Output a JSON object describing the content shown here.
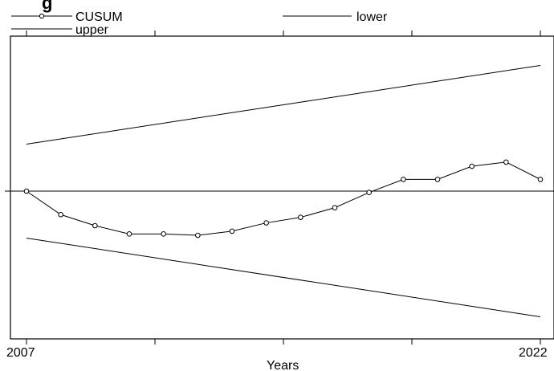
{
  "chart_data": {
    "type": "line",
    "title": "",
    "xlabel": "Years",
    "ylabel": "",
    "xlim": [
      2007,
      2022
    ],
    "x_tick_labels": [
      "2007",
      "2022"
    ],
    "ylim": [
      -1.0,
      1.0
    ],
    "legend_position": "top",
    "series": [
      {
        "name": "CUSUM",
        "marker": "circle",
        "x": [
          2007,
          2008,
          2009,
          2010,
          2011,
          2012,
          2013,
          2014,
          2015,
          2016,
          2017,
          2018,
          2019,
          2020,
          2021,
          2022
        ],
        "y": [
          0.0,
          -0.17,
          -0.25,
          -0.31,
          -0.31,
          -0.32,
          -0.29,
          -0.23,
          -0.19,
          -0.12,
          -0.01,
          0.085,
          0.085,
          0.18,
          0.21,
          0.085
        ]
      },
      {
        "name": "lower",
        "x": [
          2007,
          2022
        ],
        "y": [
          -0.34,
          -0.91
        ]
      },
      {
        "name": "upper",
        "x": [
          2007,
          2022
        ],
        "y": [
          0.34,
          0.91
        ]
      }
    ],
    "reference_lines": [
      {
        "y": 0
      }
    ],
    "colors": {
      "line": "#000000",
      "background": "#ffffff"
    }
  },
  "title_fragment": "g"
}
